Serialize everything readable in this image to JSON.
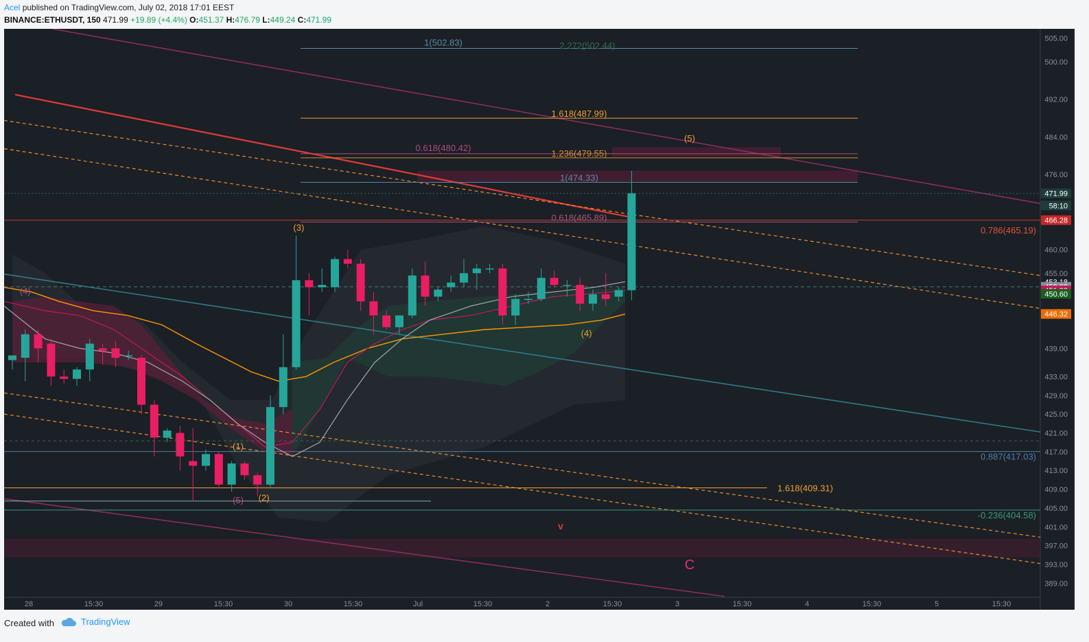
{
  "header": {
    "user": "Acel",
    "published": "published on TradingView.com, July 02, 2018 17:01 EEST",
    "symbol": "BINANCE:ETHUSDT, 150",
    "last": "471.99",
    "change": "+19.89 (+4.4%)",
    "o_label": "O:",
    "o_val": "451.37",
    "h_label": "H:",
    "h_val": "476.79",
    "l_label": "L:",
    "l_val": "449.24",
    "c_label": "C:",
    "c_val": "471.99"
  },
  "footer": {
    "created": "Created with",
    "brand": "TradingView"
  },
  "colors": {
    "background": "#1b1f26",
    "up": "#26a69a",
    "down": "#e91e63",
    "ma_orange": "#ff9800",
    "ma_red": "#e53935",
    "ma_grey": "#b0b0b0",
    "channel_orange": "#e8912b",
    "teal_line": "#2f7a8a",
    "purple_line": "#8a2e5b"
  },
  "chart_data": {
    "type": "candlestick",
    "symbol": "BINANCE:ETHUSDT",
    "interval": "150",
    "ylim": [
      386,
      507
    ],
    "y_ticks": [
      "505.00",
      "500.00",
      "492.00",
      "484.00",
      "476.00",
      "460.00",
      "455.00",
      "439.00",
      "433.00",
      "429.00",
      "425.00",
      "421.00",
      "417.00",
      "413.00",
      "409.00",
      "405.00",
      "401.00",
      "397.00",
      "393.00",
      "389.00"
    ],
    "x_tick_labels": [
      "28",
      "15:30",
      "29",
      "15:30",
      "30",
      "15:30",
      "Jul",
      "15:30",
      "2",
      "15:30",
      "3",
      "15:30",
      "4",
      "15:30",
      "5",
      "15:30"
    ],
    "candles": [
      {
        "o": 436.5,
        "h": 437.5,
        "l": 434.5,
        "c": 437.5
      },
      {
        "o": 437,
        "h": 443,
        "l": 432,
        "c": 442
      },
      {
        "o": 442,
        "h": 443,
        "l": 436,
        "c": 439
      },
      {
        "o": 440,
        "h": 441,
        "l": 431,
        "c": 433
      },
      {
        "o": 433,
        "h": 434.5,
        "l": 431.5,
        "c": 432.5
      },
      {
        "o": 432.5,
        "h": 435,
        "l": 431,
        "c": 434.5
      },
      {
        "o": 434.5,
        "h": 441,
        "l": 432,
        "c": 440
      },
      {
        "o": 439,
        "h": 440,
        "l": 435.5,
        "c": 438.5
      },
      {
        "o": 439,
        "h": 440.5,
        "l": 435,
        "c": 437
      },
      {
        "o": 437.5,
        "h": 438.5,
        "l": 436.5,
        "c": 437.5
      },
      {
        "o": 437,
        "h": 437.5,
        "l": 425,
        "c": 427
      },
      {
        "o": 427,
        "h": 428,
        "l": 416,
        "c": 420
      },
      {
        "o": 420,
        "h": 422,
        "l": 419,
        "c": 421.5
      },
      {
        "o": 421,
        "h": 422.5,
        "l": 413,
        "c": 416
      },
      {
        "o": 415,
        "h": 422,
        "l": 406.5,
        "c": 414
      },
      {
        "o": 414,
        "h": 417.5,
        "l": 413,
        "c": 416.5
      },
      {
        "o": 416.5,
        "h": 417,
        "l": 409.5,
        "c": 410
      },
      {
        "o": 410,
        "h": 415,
        "l": 408.5,
        "c": 414.5
      },
      {
        "o": 414.5,
        "h": 415,
        "l": 411,
        "c": 412
      },
      {
        "o": 412,
        "h": 412.5,
        "l": 407.5,
        "c": 410
      },
      {
        "o": 410,
        "h": 429,
        "l": 409.5,
        "c": 426.5
      },
      {
        "o": 426.5,
        "h": 442,
        "l": 425,
        "c": 435
      },
      {
        "o": 435,
        "h": 463,
        "l": 434.5,
        "c": 453.5
      },
      {
        "o": 453.5,
        "h": 455,
        "l": 446,
        "c": 452
      },
      {
        "o": 452,
        "h": 456,
        "l": 451,
        "c": 452.5
      },
      {
        "o": 452,
        "h": 458.5,
        "l": 451,
        "c": 458
      },
      {
        "o": 458,
        "h": 460,
        "l": 456,
        "c": 457
      },
      {
        "o": 457,
        "h": 458,
        "l": 447,
        "c": 449
      },
      {
        "o": 449,
        "h": 451,
        "l": 442,
        "c": 446
      },
      {
        "o": 446,
        "h": 447,
        "l": 443,
        "c": 443.5
      },
      {
        "o": 443.5,
        "h": 446,
        "l": 442,
        "c": 446
      },
      {
        "o": 446,
        "h": 456,
        "l": 445.5,
        "c": 454.5
      },
      {
        "o": 454.5,
        "h": 457.5,
        "l": 448,
        "c": 450
      },
      {
        "o": 450,
        "h": 452,
        "l": 449,
        "c": 451.5
      },
      {
        "o": 452,
        "h": 454.5,
        "l": 451,
        "c": 453
      },
      {
        "o": 453,
        "h": 458,
        "l": 452,
        "c": 455
      },
      {
        "o": 455,
        "h": 457,
        "l": 451.5,
        "c": 456
      },
      {
        "o": 456,
        "h": 457,
        "l": 455,
        "c": 456
      },
      {
        "o": 456,
        "h": 457,
        "l": 444,
        "c": 446
      },
      {
        "o": 446,
        "h": 450.5,
        "l": 444,
        "c": 449.5
      },
      {
        "o": 449.5,
        "h": 451,
        "l": 448.5,
        "c": 449.5
      },
      {
        "o": 449.5,
        "h": 456,
        "l": 449,
        "c": 454
      },
      {
        "o": 454,
        "h": 455.5,
        "l": 452,
        "c": 452.5
      },
      {
        "o": 452.5,
        "h": 453.5,
        "l": 450,
        "c": 452.5
      },
      {
        "o": 452.5,
        "h": 454,
        "l": 447,
        "c": 448.5
      },
      {
        "o": 448.5,
        "h": 451.5,
        "l": 447,
        "c": 450.5
      },
      {
        "o": 450.5,
        "h": 455,
        "l": 448,
        "c": 449.5
      },
      {
        "o": 450,
        "h": 452,
        "l": 449,
        "c": 451.4
      },
      {
        "o": 451.37,
        "h": 476.79,
        "l": 449.24,
        "c": 471.99
      }
    ],
    "fib_levels": [
      {
        "label": "1(502.83)",
        "value": 502.83,
        "color": "#5b8aa6"
      },
      {
        "label": "2.272(502.44)",
        "value": 502.44,
        "color": "#2e6e4f"
      },
      {
        "label": "1.618(487.99)",
        "value": 487.99,
        "color": "#f0a030"
      },
      {
        "label": "0.618(480.42)",
        "value": 480.42,
        "color": "#b04c7a"
      },
      {
        "label": "1.236(479.55)",
        "value": 479.55,
        "color": "#d4902c"
      },
      {
        "label": "1(474.33)",
        "value": 474.33,
        "color": "#5b8aa6"
      },
      {
        "label": "0.618(465.89)",
        "value": 465.89,
        "color": "#a6577c"
      },
      {
        "label": "0.786(465.19)",
        "value": 465.19,
        "color": "#e0553c"
      },
      {
        "label": "0.887(417.03)",
        "value": 417.03,
        "color": "#4f7ea3"
      },
      {
        "label": "1.618(409.31)",
        "value": 409.31,
        "color": "#f0a030"
      },
      {
        "label": "-0.236(404.58)",
        "value": 404.58,
        "color": "#3a9a7a"
      }
    ],
    "wave_labels": [
      {
        "text": "(4)",
        "x": 1,
        "y": 450.5,
        "color": "#b54d86"
      },
      {
        "text": "(3)",
        "x": 22.2,
        "y": 464,
        "color": "#f0a030"
      },
      {
        "text": "(1)",
        "x": 17.5,
        "y": 417.5,
        "color": "#f0a030"
      },
      {
        "text": "(5)",
        "x": 17.5,
        "y": 406,
        "color": "#b54d86"
      },
      {
        "text": "(2)",
        "x": 19.5,
        "y": 406.5,
        "color": "#f0a030"
      },
      {
        "text": "(4)",
        "x": 44.5,
        "y": 441.5,
        "color": "#f0a030"
      },
      {
        "text": "(5)",
        "x": 52.5,
        "y": 483,
        "color": "#f0a030"
      },
      {
        "text": "v",
        "x": 42.5,
        "y": 400.5,
        "color": "#e03a3a"
      },
      {
        "text": "C",
        "x": 52.5,
        "y": 392,
        "color": "#e0336e"
      }
    ],
    "price_badges": [
      {
        "label": "471.99",
        "value": 471.99,
        "bg": "#1e3d3a",
        "fg": "#ffffff"
      },
      {
        "label": "58:10",
        "value": 469.4,
        "bg": "#1e3d3a",
        "fg": "#ffffff"
      },
      {
        "label": "466.28",
        "value": 466.28,
        "bg": "#c62828",
        "fg": "#ffffff"
      },
      {
        "label": "453.18",
        "value": 453.18,
        "bg": "#1b1f26",
        "fg": "#ffffff"
      },
      {
        "label": "452.09",
        "value": 452.09,
        "bg": "#8a8f96",
        "fg": "#ffffff"
      },
      {
        "label": "451.33",
        "value": 451.33,
        "bg": "#c2185b",
        "fg": "#ffffff"
      },
      {
        "label": "450.60",
        "value": 450.6,
        "bg": "#1b5e20",
        "fg": "#ffffff"
      },
      {
        "label": "446.32",
        "value": 446.32,
        "bg": "#ef6c00",
        "fg": "#ffffff"
      }
    ]
  }
}
